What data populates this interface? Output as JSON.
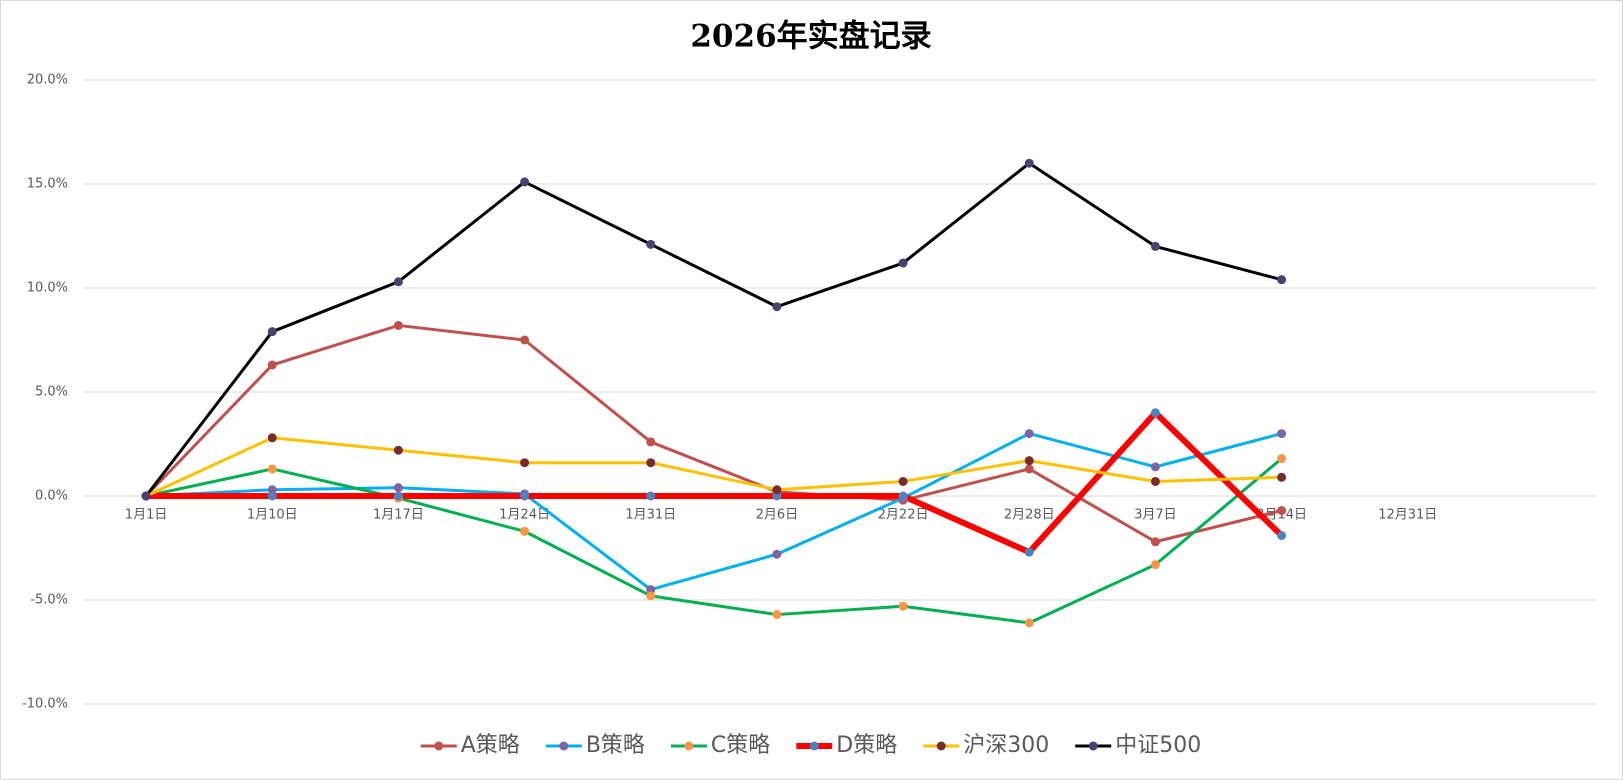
{
  "chart_data": {
    "type": "line",
    "title": "2026年实盘记录",
    "categories": [
      "1月1日",
      "1月10日",
      "1月17日",
      "1月24日",
      "1月31日",
      "2月6日",
      "2月22日",
      "2月28日",
      "3月7日",
      "3月14日",
      "12月31日",
      null
    ],
    "series": [
      {
        "name": "A策略",
        "color": "#c0504d",
        "marker_color": "#c0504d",
        "line_width": 3,
        "values": [
          0,
          6.3,
          8.2,
          7.5,
          2.6,
          0.2,
          -0.2,
          1.3,
          -2.2,
          -0.7,
          null,
          null
        ]
      },
      {
        "name": "B策略",
        "color": "#00b0f0",
        "marker_color": "#8064a2",
        "line_width": 3,
        "values": [
          0,
          0.3,
          0.4,
          0.1,
          -4.5,
          -2.8,
          -0.1,
          3.0,
          1.4,
          3.0,
          null,
          null
        ]
      },
      {
        "name": "C策略",
        "color": "#00b050",
        "marker_color": "#f79646",
        "line_width": 3,
        "values": [
          0,
          1.3,
          -0.1,
          -1.7,
          -4.8,
          -5.7,
          -5.3,
          -6.1,
          -3.3,
          1.8,
          null,
          null
        ]
      },
      {
        "name": "D策略",
        "color": "#ff0000",
        "marker_color": "#4f81bd",
        "line_width": 6,
        "values": [
          0,
          0,
          0,
          0,
          0,
          0,
          0,
          -2.7,
          4.0,
          -1.9,
          null,
          null
        ]
      },
      {
        "name": "沪深300",
        "color": "#ffc000",
        "marker_color": "#772c2a",
        "line_width": 3,
        "values": [
          0,
          2.8,
          2.2,
          1.6,
          1.6,
          0.3,
          0.7,
          1.7,
          0.7,
          0.9,
          null,
          null
        ]
      },
      {
        "name": "中证500",
        "color": "#000000",
        "marker_color": "#4f3f6e",
        "line_width": 3,
        "values": [
          0,
          7.9,
          10.3,
          15.1,
          12.1,
          9.1,
          11.2,
          16.0,
          12.0,
          10.4,
          null,
          null
        ]
      }
    ],
    "ylim": [
      -10,
      20
    ],
    "yticks": [
      {
        "value": -10,
        "label": "-10.0%"
      },
      {
        "value": -5,
        "label": "-5.0%"
      },
      {
        "value": 0,
        "label": "0.0%"
      },
      {
        "value": 5,
        "label": "5.0%"
      },
      {
        "value": 10,
        "label": "10.0%"
      },
      {
        "value": 15,
        "label": "15.0%"
      },
      {
        "value": 20,
        "label": "20.0%"
      }
    ],
    "grid": true,
    "legend": "bottom"
  }
}
